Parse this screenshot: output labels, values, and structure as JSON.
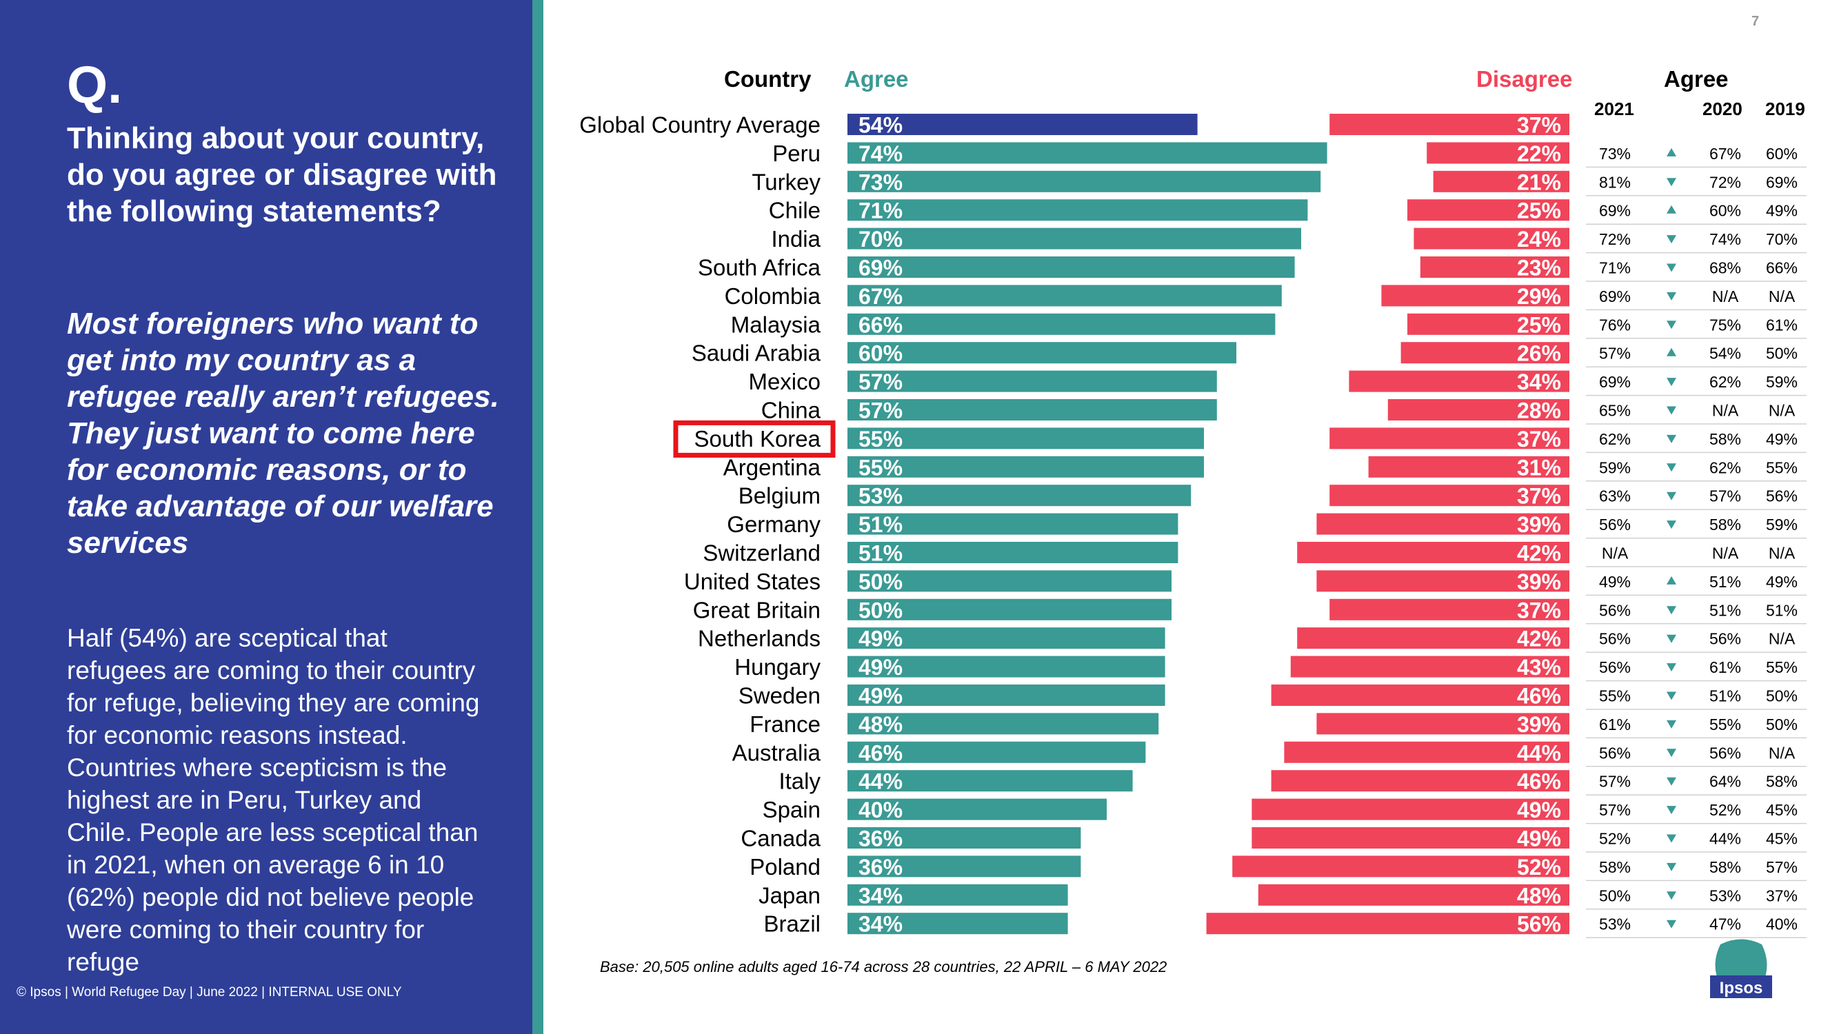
{
  "page_number": "7",
  "sidebar": {
    "q_mark": "Q.",
    "question": "Thinking about your country, do you agree or disagree with the following statements?",
    "statement": "Most foreigners who want to get into my country as a refugee really aren’t refugees. They just want to come here for economic reasons, or to take advantage of our welfare services",
    "summary": "Half (54%) are sceptical that refugees are coming to their country for refuge, believing they are coming for economic reasons instead. Countries where scepticism is the highest are in Peru, Turkey and Chile. People are less sceptical than in 2021, when on average 6 in 10 (62%) people did not believe people were coming to their country for refuge",
    "footer": "© Ipsos | World Refugee Day | June 2022 | INTERNAL USE ONLY"
  },
  "headers": {
    "country": "Country",
    "agree": "Agree",
    "disagree": "Disagree",
    "trend_agree": "Agree",
    "y2021": "2021",
    "y2020": "2020",
    "y2019": "2019"
  },
  "base_note": "Base: 20,505 online adults aged 16-74 across 28 countries,  22 APRIL – 6 MAY 2022",
  "logo_text": "Ipsos",
  "highlight_country": "South Korea",
  "colors": {
    "agree": "#3a9a94",
    "agree_global": "#2f3f98",
    "disagree": "#f0445a",
    "sidebar": "#2f3f98",
    "highlight": "#e8141b",
    "arrow": "#3a9a94"
  },
  "chart_data": {
    "type": "bar",
    "title": "Most foreigners who want to get into my country as a refugee really aren’t refugees",
    "xlabel": "",
    "ylabel": "",
    "xlim": [
      0,
      100
    ],
    "categories": [
      "Global Country Average",
      "Peru",
      "Turkey",
      "Chile",
      "India",
      "South Africa",
      "Colombia",
      "Malaysia",
      "Saudi Arabia",
      "Mexico",
      "China",
      "South Korea",
      "Argentina",
      "Belgium",
      "Germany",
      "Switzerland",
      "United States",
      "Great Britain",
      "Netherlands",
      "Hungary",
      "Sweden",
      "France",
      "Australia",
      "Italy",
      "Spain",
      "Canada",
      "Poland",
      "Japan",
      "Brazil"
    ],
    "series": [
      {
        "name": "Agree",
        "values": [
          54,
          74,
          73,
          71,
          70,
          69,
          67,
          66,
          60,
          57,
          57,
          55,
          55,
          53,
          51,
          51,
          50,
          50,
          49,
          49,
          49,
          48,
          46,
          44,
          40,
          36,
          36,
          34,
          34
        ]
      },
      {
        "name": "Disagree",
        "values": [
          37,
          22,
          21,
          25,
          24,
          23,
          29,
          25,
          26,
          34,
          28,
          37,
          31,
          37,
          39,
          42,
          39,
          37,
          42,
          43,
          46,
          39,
          44,
          46,
          49,
          49,
          52,
          48,
          56
        ]
      }
    ],
    "trend_table": {
      "columns": [
        "2021",
        "change",
        "2020",
        "2019"
      ],
      "rows": [
        [
          "",
          "",
          "",
          ""
        ],
        [
          "73%",
          "up",
          "67%",
          "60%"
        ],
        [
          "81%",
          "down",
          "72%",
          "69%"
        ],
        [
          "69%",
          "up",
          "60%",
          "49%"
        ],
        [
          "72%",
          "down",
          "74%",
          "70%"
        ],
        [
          "71%",
          "down",
          "68%",
          "66%"
        ],
        [
          "69%",
          "down",
          "N/A",
          "N/A"
        ],
        [
          "76%",
          "down",
          "75%",
          "61%"
        ],
        [
          "57%",
          "up",
          "54%",
          "50%"
        ],
        [
          "69%",
          "down",
          "62%",
          "59%"
        ],
        [
          "65%",
          "down",
          "N/A",
          "N/A"
        ],
        [
          "62%",
          "down",
          "58%",
          "49%"
        ],
        [
          "59%",
          "down",
          "62%",
          "55%"
        ],
        [
          "63%",
          "down",
          "57%",
          "56%"
        ],
        [
          "56%",
          "down",
          "58%",
          "59%"
        ],
        [
          "N/A",
          "",
          "N/A",
          "N/A"
        ],
        [
          "49%",
          "up",
          "51%",
          "49%"
        ],
        [
          "56%",
          "down",
          "51%",
          "51%"
        ],
        [
          "56%",
          "down",
          "56%",
          "N/A"
        ],
        [
          "56%",
          "down",
          "61%",
          "55%"
        ],
        [
          "55%",
          "down",
          "51%",
          "50%"
        ],
        [
          "61%",
          "down",
          "55%",
          "50%"
        ],
        [
          "56%",
          "down",
          "56%",
          "N/A"
        ],
        [
          "57%",
          "down",
          "64%",
          "58%"
        ],
        [
          "57%",
          "down",
          "52%",
          "45%"
        ],
        [
          "52%",
          "down",
          "44%",
          "45%"
        ],
        [
          "58%",
          "down",
          "58%",
          "57%"
        ],
        [
          "50%",
          "down",
          "53%",
          "37%"
        ],
        [
          "53%",
          "down",
          "47%",
          "40%"
        ]
      ]
    }
  }
}
